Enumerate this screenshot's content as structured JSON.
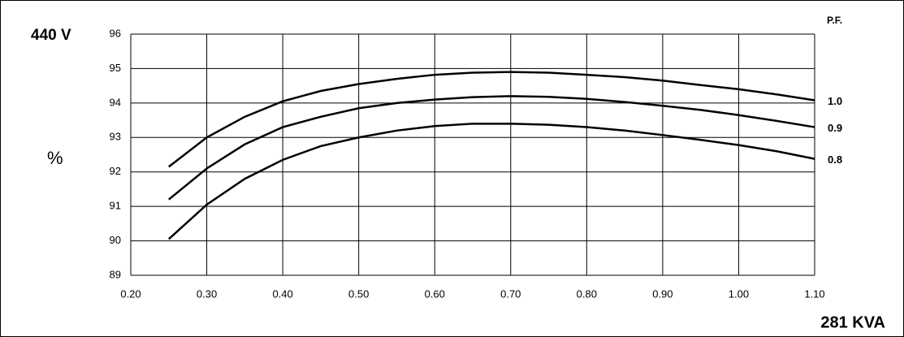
{
  "chart_data": {
    "type": "line",
    "title": "440 V",
    "y_label": "%",
    "x_label": "281 KVA",
    "legend_title": "P.F.",
    "x": [
      0.25,
      0.3,
      0.35,
      0.4,
      0.45,
      0.5,
      0.55,
      0.6,
      0.65,
      0.7,
      0.75,
      0.8,
      0.85,
      0.9,
      0.95,
      1.0,
      1.05,
      1.1
    ],
    "series": [
      {
        "name": "1.0",
        "color": "#000000",
        "values": [
          92.15,
          93.0,
          93.6,
          94.05,
          94.35,
          94.55,
          94.7,
          94.82,
          94.88,
          94.9,
          94.88,
          94.82,
          94.75,
          94.65,
          94.52,
          94.4,
          94.25,
          94.08
        ]
      },
      {
        "name": "0.9",
        "color": "#000000",
        "values": [
          91.2,
          92.1,
          92.8,
          93.3,
          93.6,
          93.85,
          94.0,
          94.1,
          94.17,
          94.2,
          94.18,
          94.12,
          94.03,
          93.92,
          93.8,
          93.65,
          93.48,
          93.3
        ]
      },
      {
        "name": "0.8",
        "color": "#000000",
        "values": [
          90.05,
          91.05,
          91.8,
          92.35,
          92.75,
          93.0,
          93.2,
          93.33,
          93.4,
          93.4,
          93.37,
          93.3,
          93.2,
          93.07,
          92.93,
          92.78,
          92.6,
          92.38
        ]
      }
    ],
    "xlim": [
      0.2,
      1.1
    ],
    "ylim": [
      89,
      96
    ],
    "xticks": [
      {
        "value": 0.2,
        "label": "0.20"
      },
      {
        "value": 0.3,
        "label": "0.30"
      },
      {
        "value": 0.4,
        "label": "0.40"
      },
      {
        "value": 0.5,
        "label": "0.50"
      },
      {
        "value": 0.6,
        "label": "0.60"
      },
      {
        "value": 0.7,
        "label": "0.70"
      },
      {
        "value": 0.8,
        "label": "0.80"
      },
      {
        "value": 0.9,
        "label": "0.90"
      },
      {
        "value": 1.0,
        "label": "1.00"
      },
      {
        "value": 1.1,
        "label": "1.10"
      }
    ],
    "yticks": [
      89,
      90,
      91,
      92,
      93,
      94,
      95,
      96
    ],
    "grid": true
  }
}
